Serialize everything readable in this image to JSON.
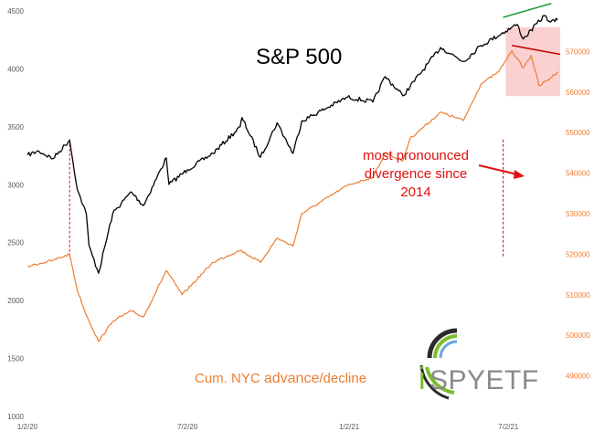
{
  "chart_data": {
    "type": "line",
    "title": "S&P 500",
    "x_ticks": [
      "1/2/20",
      "7/2/20",
      "1/2/21",
      "7/2/21"
    ],
    "y_left": {
      "ylim": [
        1000,
        4500
      ],
      "ticks": [
        "1000",
        "1500",
        "2000",
        "2500",
        "3000",
        "3500",
        "4000",
        "4500"
      ]
    },
    "y_right": {
      "ylim": [
        480000,
        580000
      ],
      "ticks": [
        "490000",
        "500000",
        "510000",
        "520000",
        "530000",
        "540000",
        "550000",
        "560000",
        "570000"
      ]
    },
    "series": [
      {
        "name": "S&P 500",
        "axis": "left",
        "color": "#000000",
        "points": [
          [
            "2020-01-02",
            3257
          ],
          [
            "2020-01-15",
            3290
          ],
          [
            "2020-01-31",
            3225
          ],
          [
            "2020-02-19",
            3386
          ],
          [
            "2020-02-28",
            2954
          ],
          [
            "2020-03-09",
            2746
          ],
          [
            "2020-03-12",
            2480
          ],
          [
            "2020-03-16",
            2386
          ],
          [
            "2020-03-23",
            2237
          ],
          [
            "2020-04-08",
            2750
          ],
          [
            "2020-04-29",
            2939
          ],
          [
            "2020-05-13",
            2820
          ],
          [
            "2020-06-08",
            3232
          ],
          [
            "2020-06-11",
            3002
          ],
          [
            "2020-07-02",
            3130
          ],
          [
            "2020-07-31",
            3271
          ],
          [
            "2020-08-31",
            3500
          ],
          [
            "2020-09-02",
            3580
          ],
          [
            "2020-09-23",
            3237
          ],
          [
            "2020-10-12",
            3534
          ],
          [
            "2020-10-30",
            3270
          ],
          [
            "2020-11-09",
            3550
          ],
          [
            "2020-12-31",
            3756
          ],
          [
            "2021-01-29",
            3714
          ],
          [
            "2021-02-12",
            3934
          ],
          [
            "2021-03-04",
            3768
          ],
          [
            "2021-04-16",
            4185
          ],
          [
            "2021-05-12",
            4063
          ],
          [
            "2021-06-01",
            4202
          ],
          [
            "2021-07-12",
            4384
          ],
          [
            "2021-07-19",
            4258
          ],
          [
            "2021-08-12",
            4460
          ],
          [
            "2021-08-19",
            4405
          ],
          [
            "2021-08-27",
            4420
          ]
        ]
      },
      {
        "name": "Cum. NYC advance/decline",
        "axis": "right",
        "color": "#ED7D31",
        "points": [
          [
            "2020-01-02",
            517000
          ],
          [
            "2020-01-31",
            518500
          ],
          [
            "2020-02-19",
            520000
          ],
          [
            "2020-02-28",
            511000
          ],
          [
            "2020-03-09",
            505000
          ],
          [
            "2020-03-23",
            498500
          ],
          [
            "2020-04-08",
            503500
          ],
          [
            "2020-04-29",
            506000
          ],
          [
            "2020-05-13",
            504500
          ],
          [
            "2020-06-08",
            516000
          ],
          [
            "2020-06-26",
            510000
          ],
          [
            "2020-07-31",
            518000
          ],
          [
            "2020-08-31",
            521000
          ],
          [
            "2020-09-23",
            518000
          ],
          [
            "2020-10-12",
            524000
          ],
          [
            "2020-10-30",
            522000
          ],
          [
            "2020-11-09",
            530000
          ],
          [
            "2020-12-31",
            537000
          ],
          [
            "2021-01-29",
            539000
          ],
          [
            "2021-02-12",
            545000
          ],
          [
            "2021-03-04",
            543000
          ],
          [
            "2021-03-12",
            548500
          ],
          [
            "2021-04-16",
            555000
          ],
          [
            "2021-05-12",
            553000
          ],
          [
            "2021-06-01",
            562000
          ],
          [
            "2021-06-21",
            565000
          ],
          [
            "2021-07-06",
            570200
          ],
          [
            "2021-07-19",
            566000
          ],
          [
            "2021-07-28",
            569000
          ],
          [
            "2021-08-06",
            561500
          ],
          [
            "2021-08-19",
            563500
          ],
          [
            "2021-08-27",
            565000
          ]
        ]
      }
    ],
    "reference_lines": [
      {
        "date": "2020-02-19",
        "color": "#E01010",
        "style": "dashed"
      },
      {
        "date": "2021-06-26",
        "color": "#E01010",
        "style": "dashed"
      }
    ],
    "trend_lines": [
      {
        "axis": "left",
        "color": "#1E9E3A",
        "from": [
          "2021-06-26",
          4445
        ],
        "to": [
          "2021-08-20",
          4565
        ]
      },
      {
        "axis": "right",
        "color": "#C00000",
        "from": [
          "2021-07-06",
          571500
        ],
        "to": [
          "2021-08-30",
          569300
        ]
      }
    ],
    "highlight": {
      "axis": "right",
      "from_date": "2021-06-29",
      "to_date": "2021-08-30",
      "y_range": [
        559000,
        576000
      ],
      "color": "#F9C4C4"
    },
    "annotation": "most pronounced divergence since 2014",
    "series_label": "Cum. NYC advance/decline"
  },
  "chart_text": {
    "title": "S&P 500",
    "annotation_line1": "most pronounced",
    "annotation_line2": "divergence since",
    "annotation_line3": "2014",
    "series_label_part1": "Cum. NYC ",
    "series_label_part2": "advance",
    "series_label_part3": "/decline"
  },
  "logo": {
    "letter": "i",
    "word": "SPYETF",
    "accent_color": "#7BBD2E",
    "word_color": "#8A8A8A"
  }
}
